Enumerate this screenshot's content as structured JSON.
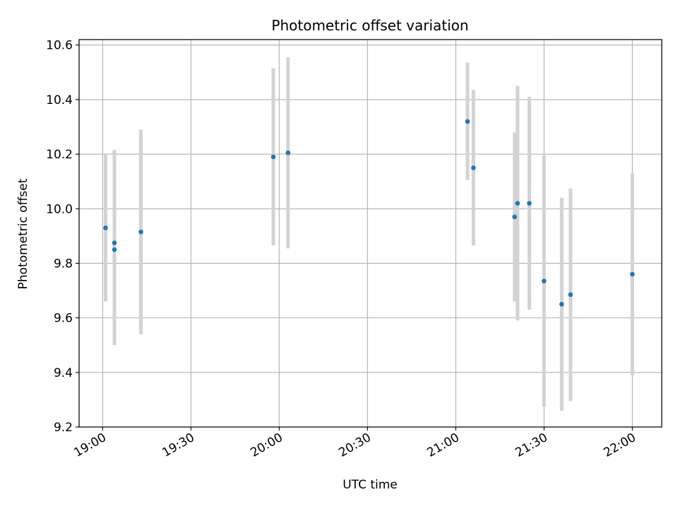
{
  "chart_data": {
    "type": "scatter",
    "title": "Photometric offset variation",
    "xlabel": "UTC time",
    "ylabel": "Photometric offset",
    "xlim": [
      "18:52",
      "22:10"
    ],
    "ylim": [
      9.2,
      10.62
    ],
    "x_ticks": [
      "19:00",
      "19:30",
      "20:00",
      "20:30",
      "21:00",
      "21:30",
      "22:00"
    ],
    "y_ticks": [
      "9.2",
      "9.4",
      "9.6",
      "9.8",
      "10.0",
      "10.2",
      "10.4",
      "10.6"
    ],
    "grid": true,
    "marker_color": "#1f77b4",
    "errorbar_color": "#d3d3d3",
    "points": [
      {
        "x": "19:01",
        "y": 9.93,
        "err": 0.27
      },
      {
        "x": "19:04",
        "y": 9.85,
        "err": 0.35
      },
      {
        "x": "19:04",
        "y": 9.875,
        "err": 0.34
      },
      {
        "x": "19:13",
        "y": 9.915,
        "err": 0.375
      },
      {
        "x": "19:58",
        "y": 10.19,
        "err": 0.325
      },
      {
        "x": "20:03",
        "y": 10.205,
        "err": 0.35
      },
      {
        "x": "21:04",
        "y": 10.32,
        "err": 0.215
      },
      {
        "x": "21:06",
        "y": 10.15,
        "err": 0.285
      },
      {
        "x": "21:20",
        "y": 9.97,
        "err": 0.31
      },
      {
        "x": "21:21",
        "y": 10.02,
        "err": 0.43
      },
      {
        "x": "21:25",
        "y": 10.02,
        "err": 0.39
      },
      {
        "x": "21:30",
        "y": 9.735,
        "err": 0.46
      },
      {
        "x": "21:36",
        "y": 9.65,
        "err": 0.39
      },
      {
        "x": "21:39",
        "y": 9.685,
        "err": 0.39
      },
      {
        "x": "22:00",
        "y": 9.76,
        "err": 0.37
      }
    ]
  }
}
